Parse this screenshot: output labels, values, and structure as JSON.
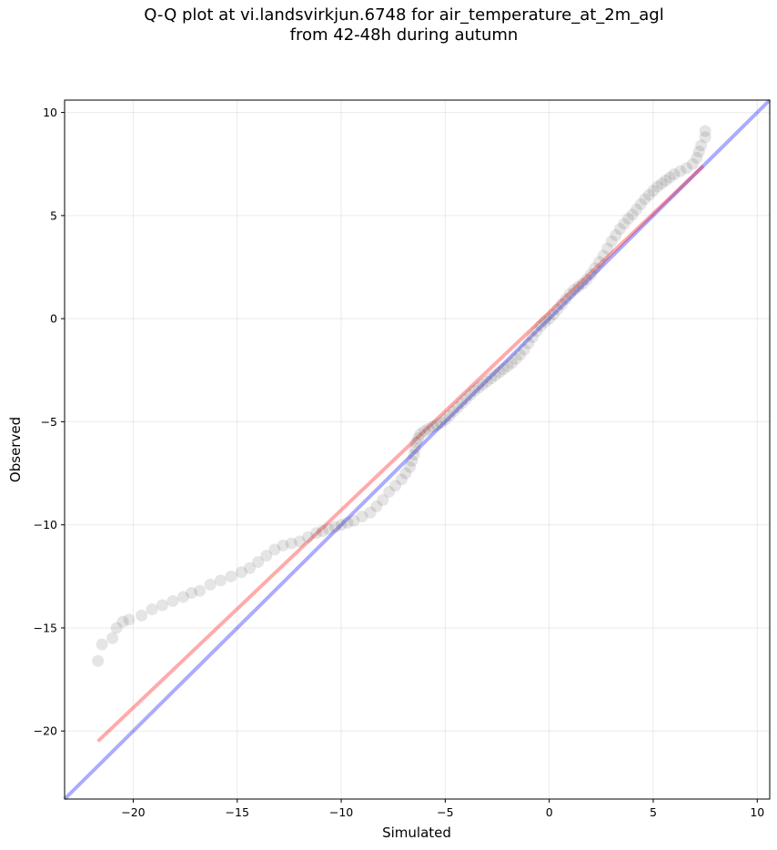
{
  "chart_data": {
    "type": "scatter",
    "title_line1": "Q-Q plot at vi.landsvirkjun.6748 for air_temperature_at_2m_agl",
    "title_line2": "from 42-48h during autumn",
    "xlabel": "Simulated",
    "ylabel": "Observed",
    "xlim": [
      -23.3,
      10.6
    ],
    "ylim": [
      -23.3,
      10.6
    ],
    "xticks": [
      "−20",
      "−15",
      "−10",
      "−5",
      "0",
      "5",
      "10"
    ],
    "xtick_values": [
      -20,
      -15,
      -10,
      -5,
      0,
      5,
      10
    ],
    "yticks": [
      "−20",
      "−15",
      "−10",
      "−5",
      "0",
      "5",
      "10"
    ],
    "ytick_values": [
      -20,
      -15,
      -10,
      -5,
      0,
      5,
      10
    ],
    "grid": true,
    "quantile_points": [
      [
        -21.7,
        -16.6
      ],
      [
        -21.5,
        -15.8
      ],
      [
        -21.0,
        -15.5
      ],
      [
        -20.8,
        -15.0
      ],
      [
        -20.5,
        -14.7
      ],
      [
        -20.2,
        -14.6
      ],
      [
        -19.6,
        -14.4
      ],
      [
        -19.1,
        -14.1
      ],
      [
        -18.6,
        -13.9
      ],
      [
        -18.1,
        -13.7
      ],
      [
        -17.6,
        -13.5
      ],
      [
        -17.2,
        -13.3
      ],
      [
        -16.8,
        -13.2
      ],
      [
        -16.3,
        -12.9
      ],
      [
        -15.8,
        -12.7
      ],
      [
        -15.3,
        -12.5
      ],
      [
        -14.8,
        -12.3
      ],
      [
        -14.4,
        -12.1
      ],
      [
        -14.0,
        -11.8
      ],
      [
        -13.6,
        -11.5
      ],
      [
        -13.2,
        -11.2
      ],
      [
        -12.8,
        -11.0
      ],
      [
        -12.4,
        -10.9
      ],
      [
        -12.0,
        -10.8
      ],
      [
        -11.6,
        -10.6
      ],
      [
        -11.2,
        -10.4
      ],
      [
        -10.9,
        -10.3
      ],
      [
        -10.6,
        -10.2
      ],
      [
        -10.3,
        -10.1
      ],
      [
        -10.0,
        -10.0
      ],
      [
        -9.7,
        -9.9
      ],
      [
        -9.4,
        -9.8
      ],
      [
        -9.0,
        -9.6
      ],
      [
        -8.6,
        -9.4
      ],
      [
        -8.3,
        -9.1
      ],
      [
        -8.0,
        -8.8
      ],
      [
        -7.7,
        -8.4
      ],
      [
        -7.4,
        -8.1
      ],
      [
        -7.1,
        -7.8
      ],
      [
        -6.9,
        -7.5
      ],
      [
        -6.7,
        -7.2
      ],
      [
        -6.6,
        -6.9
      ],
      [
        -6.5,
        -6.6
      ],
      [
        -6.45,
        -6.3
      ],
      [
        -6.4,
        -6.0
      ],
      [
        -6.3,
        -5.8
      ],
      [
        -6.2,
        -5.6
      ],
      [
        -6.0,
        -5.45
      ],
      [
        -5.8,
        -5.35
      ],
      [
        -5.6,
        -5.25
      ],
      [
        -5.4,
        -5.15
      ],
      [
        -5.2,
        -5.05
      ],
      [
        -5.0,
        -4.9
      ],
      [
        -4.8,
        -4.7
      ],
      [
        -4.6,
        -4.5
      ],
      [
        -4.4,
        -4.3
      ],
      [
        -4.2,
        -4.1
      ],
      [
        -4.0,
        -3.9
      ],
      [
        -3.8,
        -3.7
      ],
      [
        -3.6,
        -3.5
      ],
      [
        -3.4,
        -3.35
      ],
      [
        -3.2,
        -3.2
      ],
      [
        -3.0,
        -3.05
      ],
      [
        -2.8,
        -2.9
      ],
      [
        -2.6,
        -2.75
      ],
      [
        -2.4,
        -2.6
      ],
      [
        -2.2,
        -2.45
      ],
      [
        -2.0,
        -2.3
      ],
      [
        -1.8,
        -2.15
      ],
      [
        -1.6,
        -1.95
      ],
      [
        -1.4,
        -1.75
      ],
      [
        -1.2,
        -1.5
      ],
      [
        -1.0,
        -1.2
      ],
      [
        -0.8,
        -0.9
      ],
      [
        -0.6,
        -0.6
      ],
      [
        -0.4,
        -0.35
      ],
      [
        -0.2,
        -0.15
      ],
      [
        0.0,
        0.0
      ],
      [
        0.2,
        0.2
      ],
      [
        0.4,
        0.45
      ],
      [
        0.6,
        0.7
      ],
      [
        0.8,
        0.95
      ],
      [
        1.0,
        1.2
      ],
      [
        1.2,
        1.4
      ],
      [
        1.4,
        1.55
      ],
      [
        1.6,
        1.7
      ],
      [
        1.8,
        1.9
      ],
      [
        2.0,
        2.15
      ],
      [
        2.2,
        2.45
      ],
      [
        2.4,
        2.75
      ],
      [
        2.6,
        3.05
      ],
      [
        2.8,
        3.4
      ],
      [
        3.0,
        3.75
      ],
      [
        3.2,
        4.05
      ],
      [
        3.4,
        4.35
      ],
      [
        3.6,
        4.6
      ],
      [
        3.8,
        4.85
      ],
      [
        4.0,
        5.05
      ],
      [
        4.2,
        5.3
      ],
      [
        4.4,
        5.55
      ],
      [
        4.6,
        5.8
      ],
      [
        4.8,
        6.0
      ],
      [
        5.0,
        6.2
      ],
      [
        5.2,
        6.4
      ],
      [
        5.4,
        6.55
      ],
      [
        5.6,
        6.7
      ],
      [
        5.8,
        6.85
      ],
      [
        6.0,
        7.0
      ],
      [
        6.3,
        7.15
      ],
      [
        6.6,
        7.3
      ],
      [
        6.9,
        7.5
      ],
      [
        7.1,
        7.8
      ],
      [
        7.2,
        8.1
      ],
      [
        7.3,
        8.4
      ],
      [
        7.5,
        8.8
      ],
      [
        7.5,
        9.1
      ]
    ],
    "reference_line_blue": {
      "color": "#0000ff",
      "opacity": 0.33,
      "from": [
        -23.3,
        -23.3
      ],
      "to": [
        10.6,
        10.6
      ]
    },
    "fit_line_red": {
      "color": "#ff0000",
      "opacity": 0.33,
      "from": [
        -21.7,
        -20.5
      ],
      "to": [
        7.4,
        7.4
      ]
    }
  }
}
